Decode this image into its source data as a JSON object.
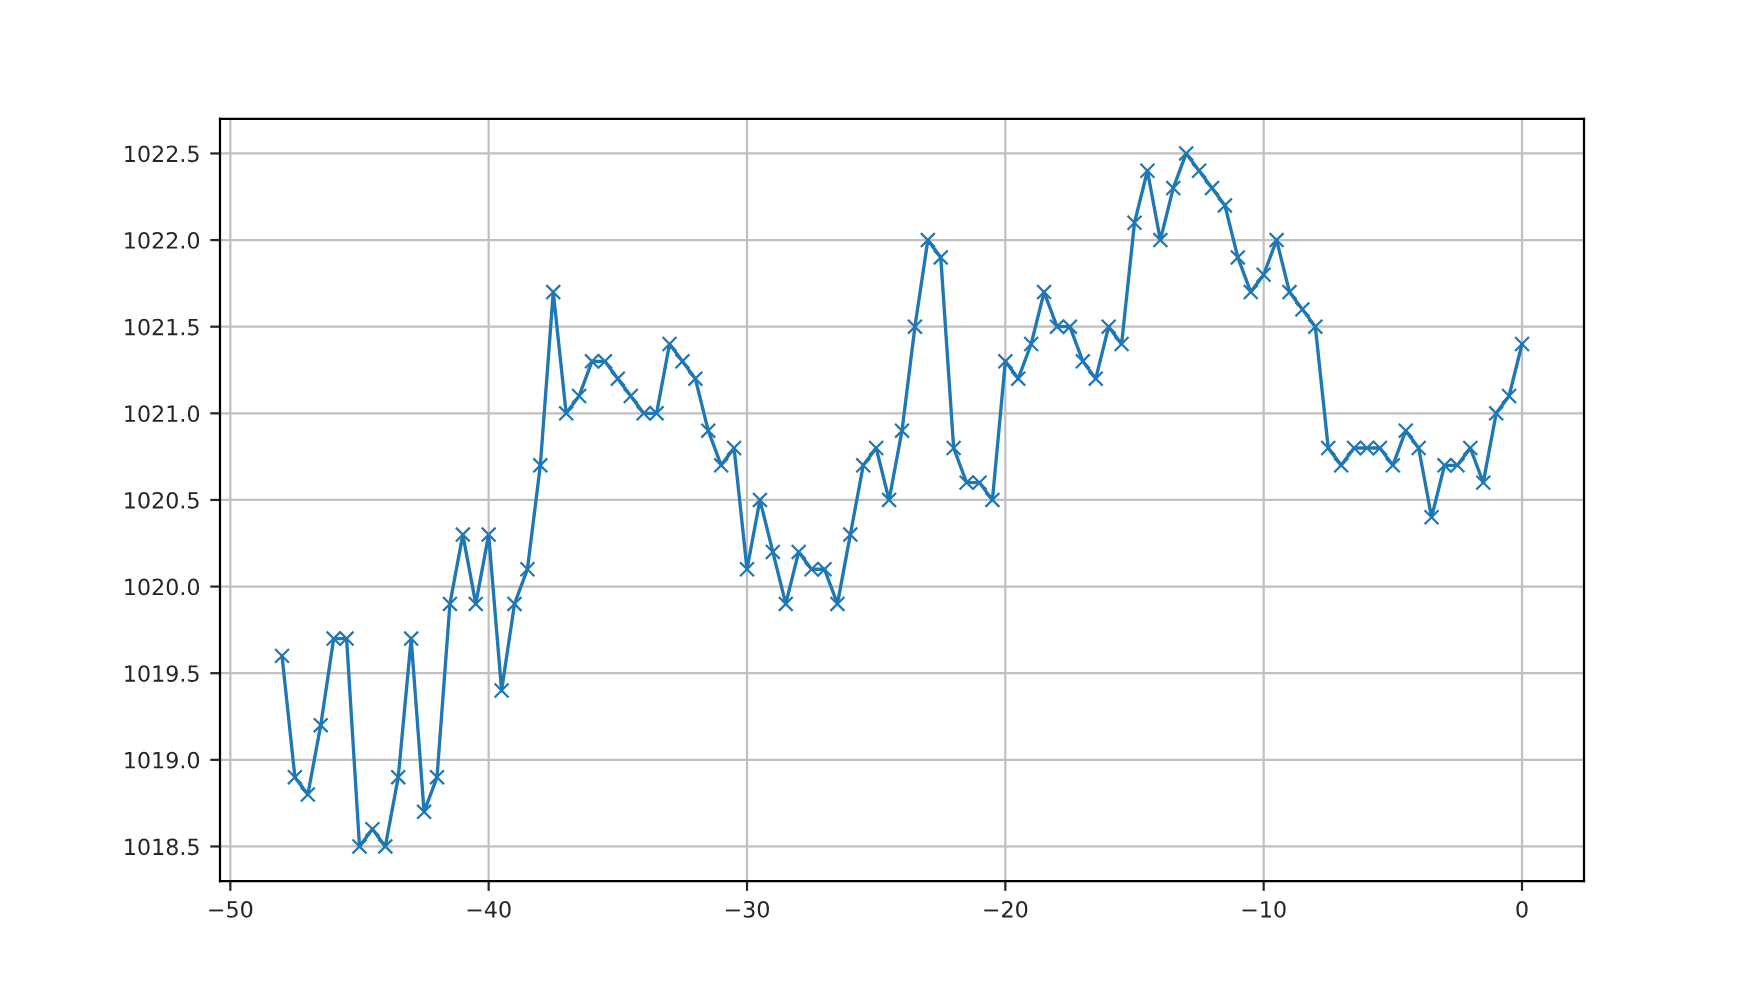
{
  "chart_data": {
    "type": "line",
    "marker": "cross",
    "line_style": "solid",
    "grid": true,
    "legend": false,
    "x": [
      -48,
      -47.5,
      -47,
      -46.5,
      -46,
      -45.5,
      -45,
      -44.5,
      -44,
      -43.5,
      -43,
      -42.5,
      -42,
      -41.5,
      -41,
      -40.5,
      -40,
      -39.5,
      -39,
      -38.5,
      -38,
      -37.5,
      -37,
      -36.5,
      -36,
      -35.5,
      -35,
      -34.5,
      -34,
      -33.5,
      -33,
      -32.5,
      -32,
      -31.5,
      -31,
      -30.5,
      -30,
      -29.5,
      -29,
      -28.5,
      -28,
      -27.5,
      -27,
      -26.5,
      -26,
      -25.5,
      -25,
      -24.5,
      -24,
      -23.5,
      -23,
      -22.5,
      -22,
      -21.5,
      -21,
      -20.5,
      -20,
      -19.5,
      -19,
      -18.5,
      -18,
      -17.5,
      -17,
      -16.5,
      -16,
      -15.5,
      -15,
      -14.5,
      -14,
      -13.5,
      -13,
      -12.5,
      -12,
      -11.5,
      -11,
      -10.5,
      -10,
      -9.5,
      -9,
      -8.5,
      -8,
      -7.5,
      -7,
      -6.5,
      -6,
      -5.5,
      -5,
      -4.5,
      -4,
      -3.5,
      -3,
      -2.5,
      -2,
      -1.5,
      -1,
      -0.5,
      0
    ],
    "series": [
      {
        "color": "#1f77b4",
        "values": [
          1019.6,
          1018.9,
          1018.8,
          1019.2,
          1019.7,
          1019.7,
          1018.5,
          1018.6,
          1018.5,
          1018.9,
          1019.7,
          1018.7,
          1018.9,
          1019.9,
          1020.3,
          1019.9,
          1020.3,
          1019.4,
          1019.9,
          1020.1,
          1020.7,
          1021.7,
          1021.0,
          1021.1,
          1021.3,
          1021.3,
          1021.2,
          1021.1,
          1021.0,
          1021.0,
          1021.4,
          1021.3,
          1021.2,
          1020.9,
          1020.7,
          1020.8,
          1020.1,
          1020.5,
          1020.2,
          1019.9,
          1020.2,
          1020.1,
          1020.1,
          1019.9,
          1020.3,
          1020.7,
          1020.8,
          1020.5,
          1020.9,
          1021.5,
          1022.0,
          1021.9,
          1020.8,
          1020.6,
          1020.6,
          1020.5,
          1021.3,
          1021.2,
          1021.4,
          1021.7,
          1021.5,
          1021.5,
          1021.3,
          1021.2,
          1021.5,
          1021.4,
          1022.1,
          1022.4,
          1022.0,
          1022.3,
          1022.5,
          1022.4,
          1022.3,
          1022.2,
          1021.9,
          1021.7,
          1021.8,
          1022.0,
          1021.7,
          1021.6,
          1021.5,
          1020.8,
          1020.7,
          1020.8,
          1020.8,
          1020.8,
          1020.7,
          1020.9,
          1020.8,
          1020.4,
          1020.7,
          1020.7,
          1020.8,
          1020.6,
          1021.0,
          1021.1,
          1021.4
        ]
      }
    ],
    "xlim": [
      -50.4,
      2.4
    ],
    "xticks": [
      {
        "value": -50,
        "label": "−50"
      },
      {
        "value": -40,
        "label": "−40"
      },
      {
        "value": -30,
        "label": "−30"
      },
      {
        "value": -20,
        "label": "−20"
      },
      {
        "value": -10,
        "label": "−10"
      },
      0
    ],
    "ylim": [
      1018.3,
      1022.7
    ],
    "yticks": [
      {
        "value": 1018.5,
        "label": "1018.5"
      },
      {
        "value": 1019,
        "label": "1019.0"
      },
      {
        "value": 1019.5,
        "label": "1019.5"
      },
      {
        "value": 1020,
        "label": "1020.0"
      },
      {
        "value": 1020.5,
        "label": "1020.5"
      },
      {
        "value": 1021,
        "label": "1021.0"
      },
      {
        "value": 1021.5,
        "label": "1021.5"
      },
      {
        "value": 1022,
        "label": "1022.0"
      },
      {
        "value": 1022.5,
        "label": "1022.5"
      }
    ]
  }
}
